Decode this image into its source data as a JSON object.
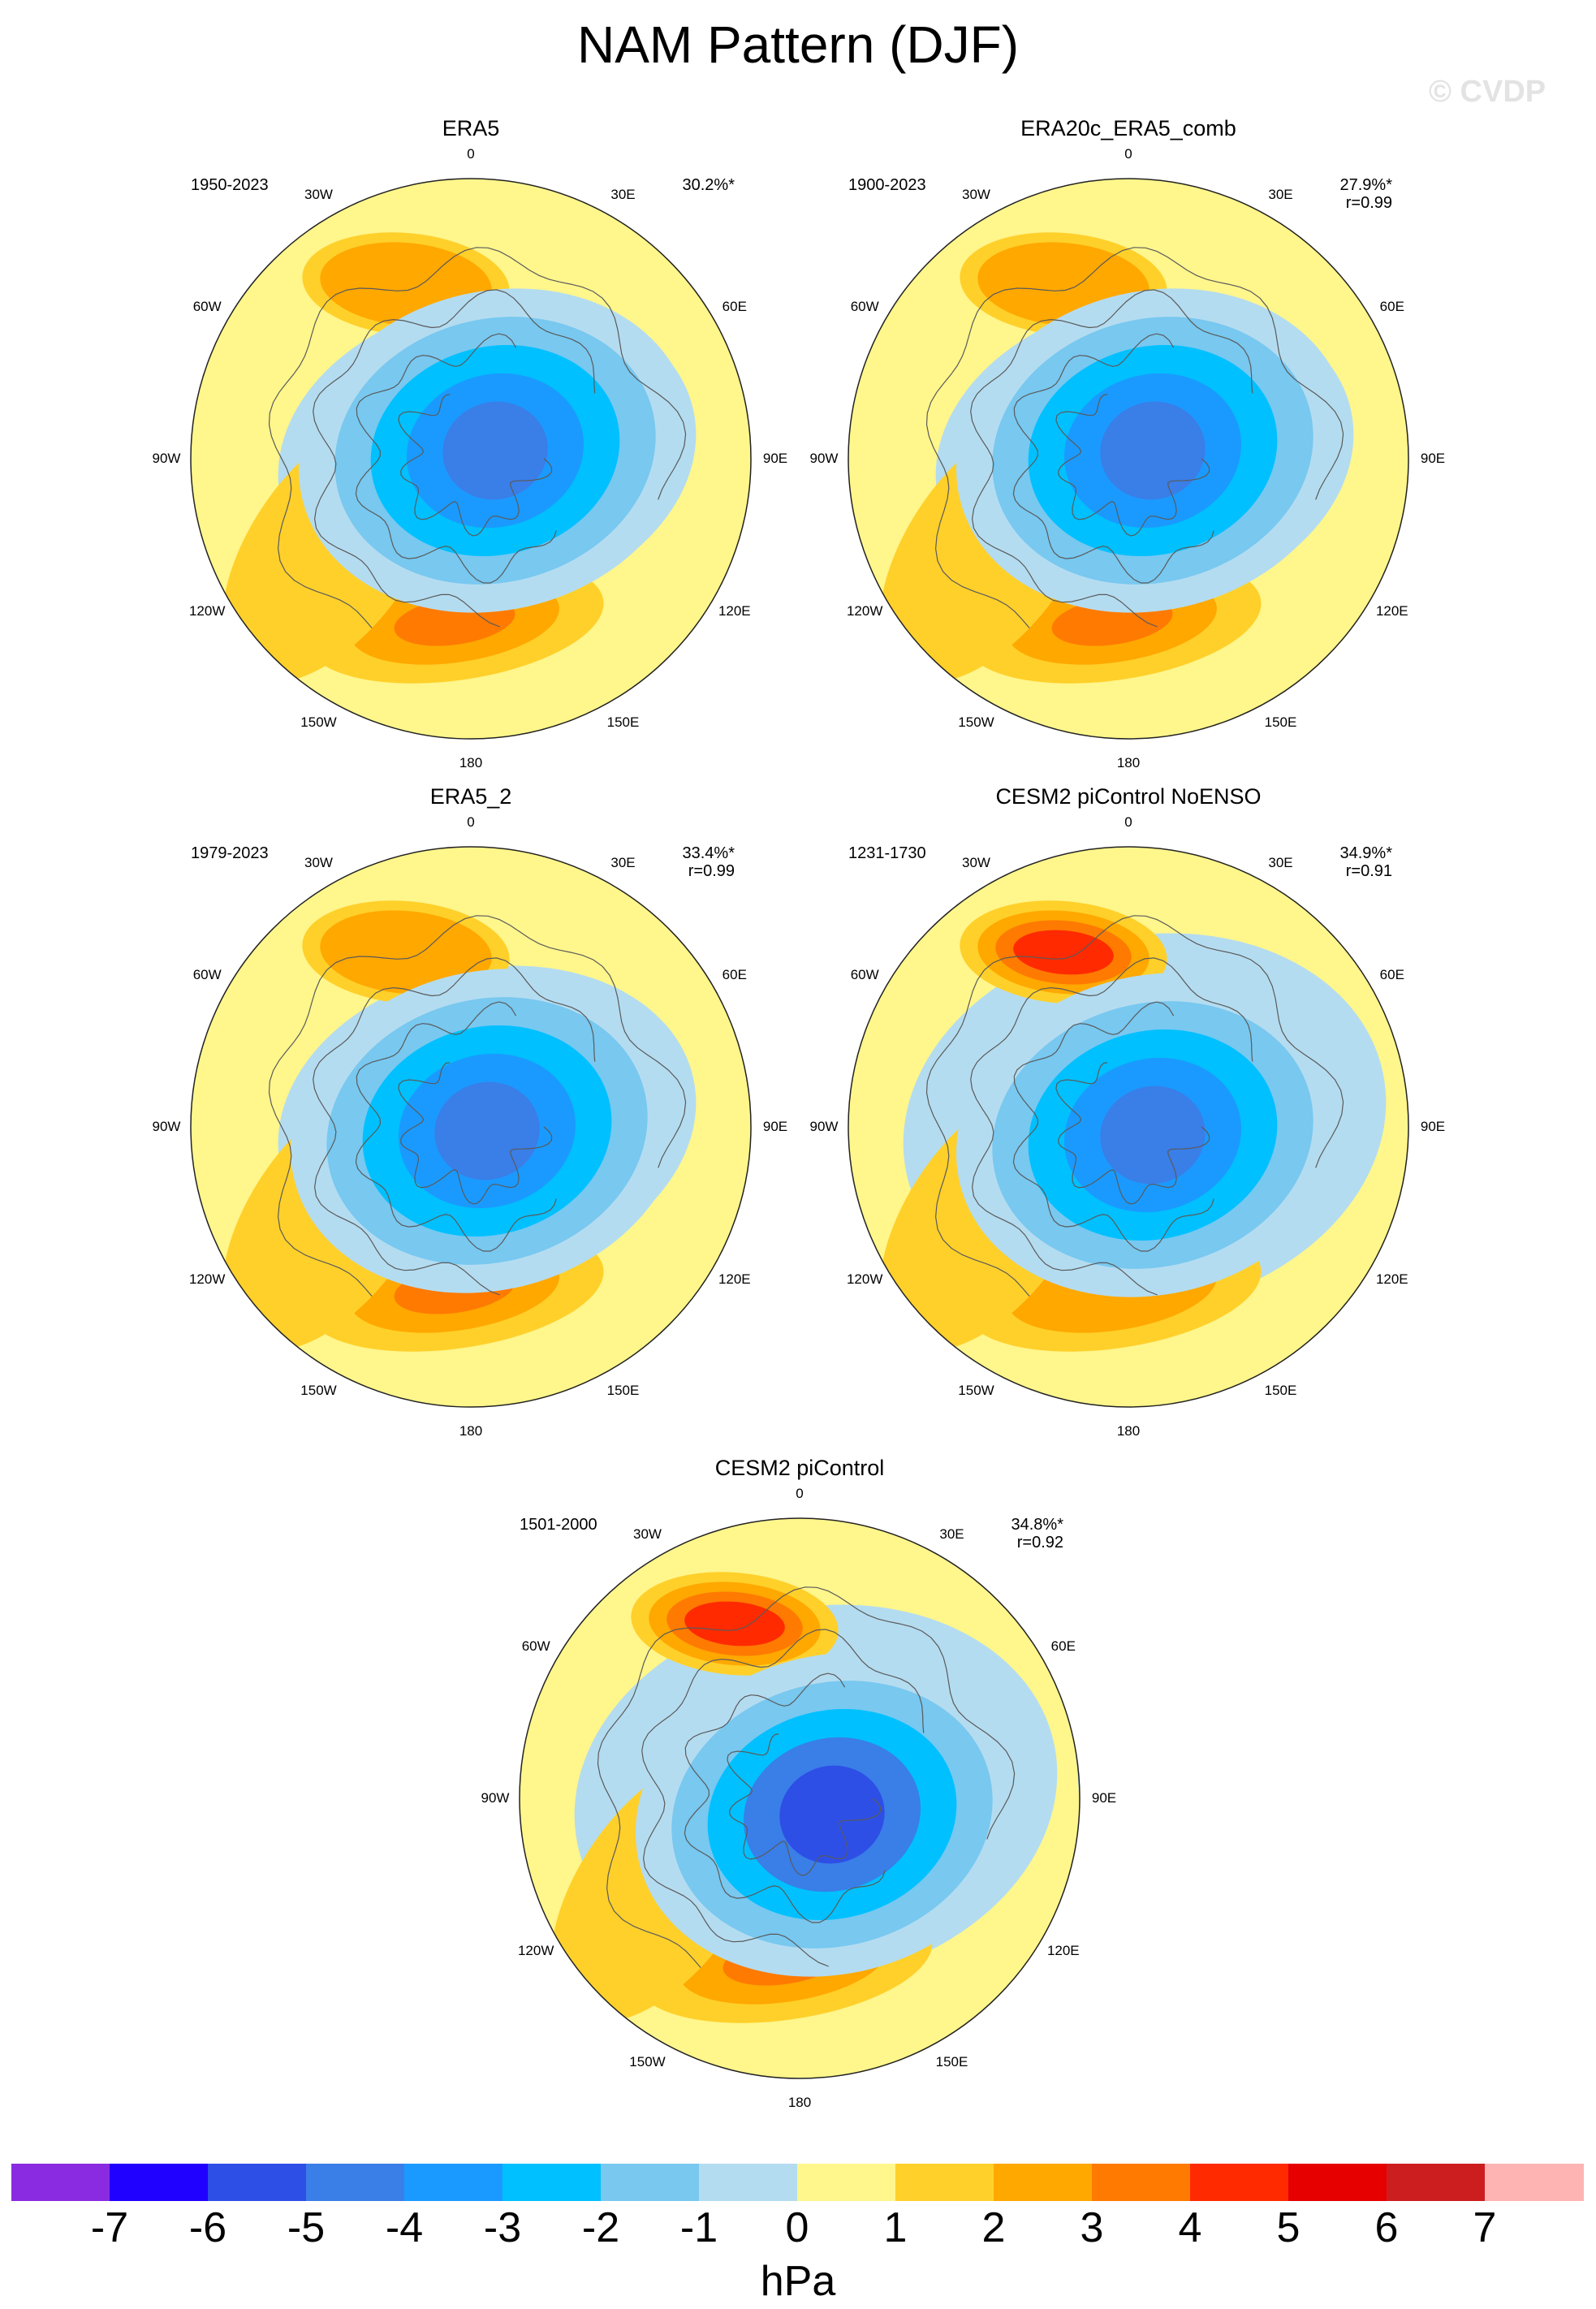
{
  "title": "NAM Pattern (DJF)",
  "watermark": "© CVDP",
  "panels": [
    {
      "title": "ERA5",
      "period": "1950-2023",
      "pct": "30.2%*",
      "r": ""
    },
    {
      "title": "ERA20c_ERA5_comb",
      "period": "1900-2023",
      "pct": "27.9%*",
      "r": "r=0.99"
    },
    {
      "title": "ERA5_2",
      "period": "1979-2023",
      "pct": "33.4%*",
      "r": "r=0.99"
    },
    {
      "title": "CESM2 piControl NoENSO",
      "period": "1231-1730",
      "pct": "34.9%*",
      "r": "r=0.91"
    },
    {
      "title": "CESM2 piControl",
      "period": "1501-2000",
      "pct": "34.8%*",
      "r": "r=0.92"
    }
  ],
  "lon_labels": [
    "180",
    "150E",
    "120E",
    "90E",
    "60E",
    "30E",
    "0",
    "30W",
    "60W",
    "90W",
    "120W",
    "150W"
  ],
  "colorbar": {
    "units": "hPa",
    "ticks": [
      "-7",
      "-6",
      "-5",
      "-4",
      "-3",
      "-2",
      "-1",
      "0",
      "1",
      "2",
      "3",
      "4",
      "5",
      "6",
      "7"
    ],
    "colors": [
      "#8a2be2",
      "#2000ff",
      "#2d4fe6",
      "#3a7ee8",
      "#1a9aff",
      "#00c0ff",
      "#78c8f0",
      "#b4dcf0",
      "#fff68c",
      "#ffd02a",
      "#ffa800",
      "#ff7a00",
      "#ff2a00",
      "#e60000",
      "#cc1e1e",
      "#ffb4b4"
    ]
  }
}
